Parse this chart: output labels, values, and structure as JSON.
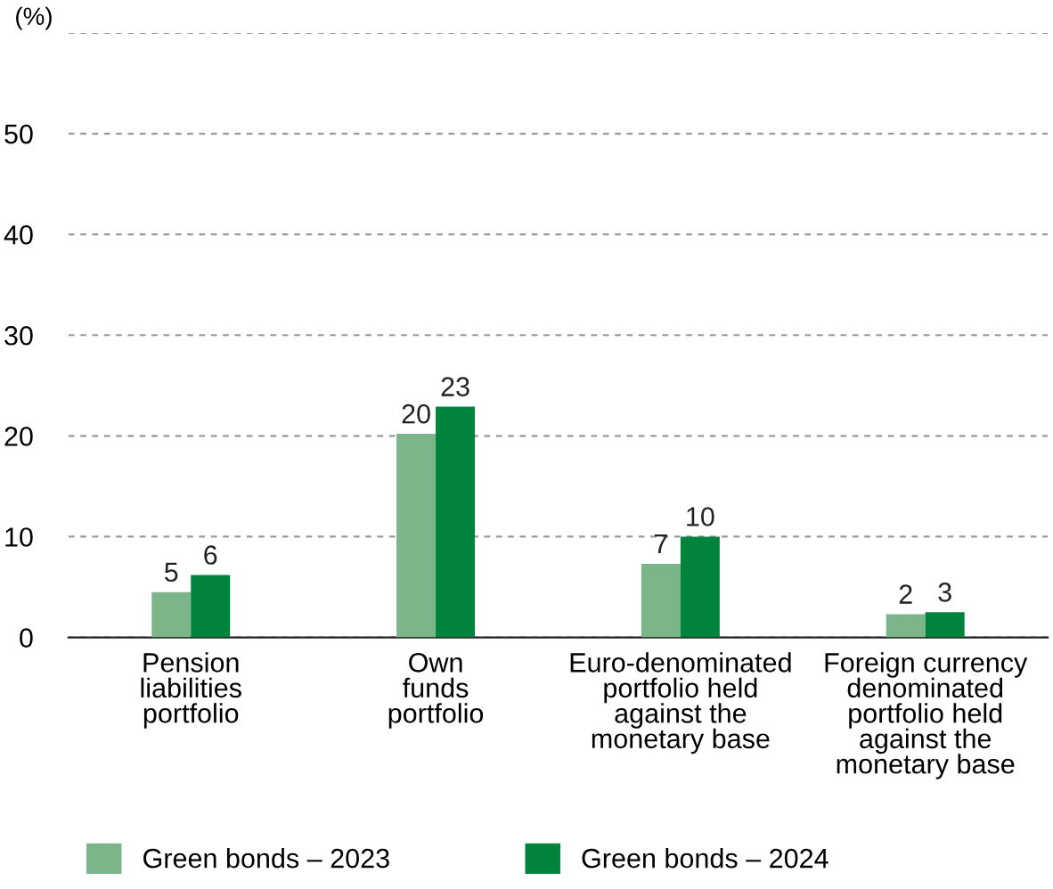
{
  "chart_data": {
    "type": "bar",
    "ylabel": "(%)",
    "categories": [
      "Pension\nliabilities\nportfolio",
      "Own\nfunds\nportfolio",
      "Euro-denominated\nportfolio held\nagainst the\nmonetary base",
      "Foreign currency\ndenominated\nportfolio held\nagainst the\nmonetary base"
    ],
    "series": [
      {
        "name": "Green bonds – 2023",
        "color": "#7db58b",
        "values": [
          4.5,
          20.2,
          7.3,
          2.3
        ],
        "value_labels": [
          "5",
          "20",
          "7",
          "2"
        ]
      },
      {
        "name": "Green bonds – 2024",
        "color": "#00843d",
        "values": [
          6.2,
          22.9,
          10.0,
          2.5
        ],
        "value_labels": [
          "6",
          "23",
          "10",
          "3"
        ]
      }
    ],
    "ylim": [
      0,
      60
    ],
    "yticks": [
      0,
      10,
      20,
      30,
      40,
      50,
      {
        "value": 60,
        "label": null
      }
    ],
    "grid": "y",
    "legend": "bottom"
  }
}
